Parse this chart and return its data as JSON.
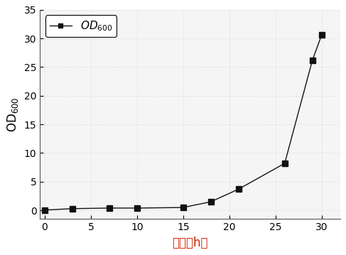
{
  "x": [
    0,
    3,
    7,
    10,
    15,
    18,
    21,
    26,
    29,
    30
  ],
  "y": [
    0.05,
    0.3,
    0.4,
    0.4,
    0.5,
    1.5,
    3.7,
    8.2,
    26.2,
    30.6
  ],
  "xlim": [
    -0.5,
    32
  ],
  "ylim": [
    -1.5,
    35
  ],
  "xticks": [
    0,
    5,
    10,
    15,
    20,
    25,
    30
  ],
  "yticks": [
    0,
    5,
    10,
    15,
    20,
    25,
    30,
    35
  ],
  "xlabel": "时间（h）",
  "ylabel": "OD600",
  "line_color": "#111111",
  "marker": "s",
  "marker_size": 6,
  "line_style": "-",
  "line_width": 1.0,
  "background_color": "#ffffff",
  "plot_bg_color": "#f5f5f5",
  "legend_label": "$\\mathit{OD}_{600}$",
  "axis_fontsize": 12,
  "tick_fontsize": 10,
  "xlabel_color": "#cc2200"
}
